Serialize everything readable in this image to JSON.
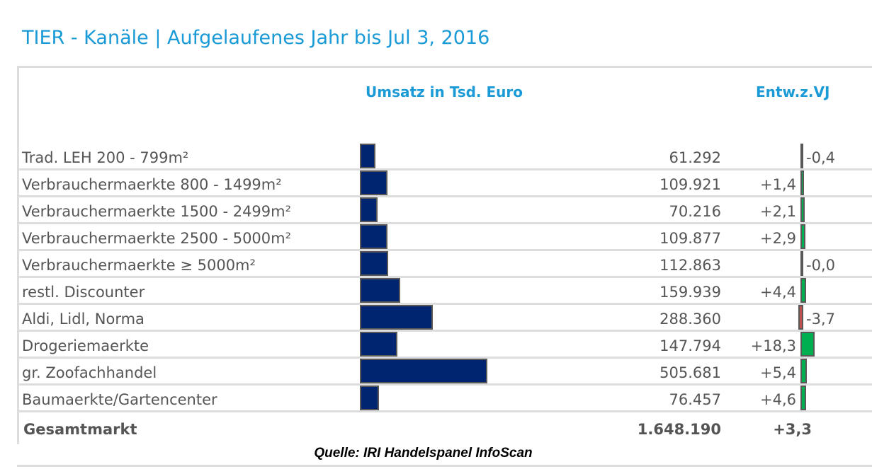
{
  "title": "TIER - Kanäle | Aufgelaufenes Jahr bis Jul 3, 2016",
  "source": "Quelle: IRI Handelspanel InfoScan",
  "colors": {
    "bar": "#002570",
    "positive": "#00b050",
    "negative": "#c0504d",
    "outline": "#595959"
  },
  "chart_data": {
    "type": "table",
    "headers": {
      "value": "Umsatz in Tsd. Euro",
      "change": "Entw.z.VJ"
    },
    "rows": [
      {
        "label": "Trad. LEH 200 - 799m²",
        "value": 61.292,
        "value_text": "61.292",
        "change": -0.4,
        "change_text": "-0,4"
      },
      {
        "label": "Verbrauchermaerkte 800 - 1499m²",
        "value": 109.921,
        "value_text": "109.921",
        "change": 1.4,
        "change_text": "+1,4"
      },
      {
        "label": "Verbrauchermaerkte 1500 - 2499m²",
        "value": 70.216,
        "value_text": "70.216",
        "change": 2.1,
        "change_text": "+2,1"
      },
      {
        "label": "Verbrauchermaerkte 2500 - 5000m²",
        "value": 109.877,
        "value_text": "109.877",
        "change": 2.9,
        "change_text": "+2,9"
      },
      {
        "label": "Verbrauchermaerkte ≥ 5000m²",
        "value": 112.863,
        "value_text": "112.863",
        "change": -0.0,
        "change_text": "-0,0"
      },
      {
        "label": "restl. Discounter",
        "value": 159.939,
        "value_text": "159.939",
        "change": 4.4,
        "change_text": "+4,4"
      },
      {
        "label": "Aldi, Lidl, Norma",
        "value": 288.36,
        "value_text": "288.360",
        "change": -3.7,
        "change_text": "-3,7"
      },
      {
        "label": "Drogeriemaerkte",
        "value": 147.794,
        "value_text": "147.794",
        "change": 18.3,
        "change_text": "+18,3"
      },
      {
        "label": "gr. Zoofachhandel",
        "value": 505.681,
        "value_text": "505.681",
        "change": 5.4,
        "change_text": "+5,4"
      },
      {
        "label": "Baumaerkte/Gartencenter",
        "value": 76.457,
        "value_text": "76.457",
        "change": 4.6,
        "change_text": "+4,6"
      }
    ],
    "total": {
      "label": "Gesamtmarkt",
      "value_text": "1.648.190",
      "change_text": "+3,3"
    }
  }
}
